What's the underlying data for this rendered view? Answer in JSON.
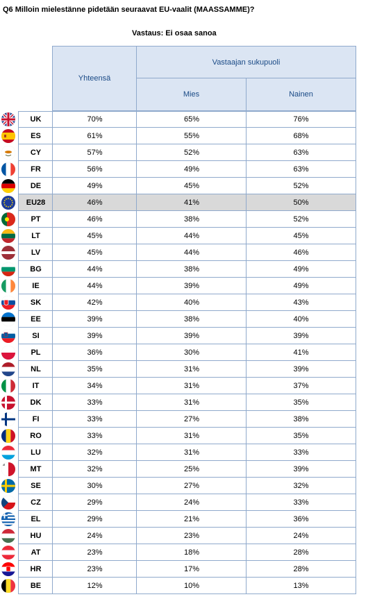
{
  "title": "Q6 Milloin mielestänne pidetään seuraavat EU-vaalit (MAASSAMME)?",
  "subtitle": "Vastaus: Ei osaa sanoa",
  "headers": {
    "total": "Yhteensä",
    "gender": "Vastaajan sukupuoli",
    "male": "Mies",
    "female": "Nainen"
  },
  "rows": [
    {
      "code": "UK",
      "total": "70%",
      "male": "65%",
      "female": "76%",
      "flag": "uk-flag-icon"
    },
    {
      "code": "ES",
      "total": "61%",
      "male": "55%",
      "female": "68%",
      "flag": "es-flag-icon"
    },
    {
      "code": "CY",
      "total": "57%",
      "male": "52%",
      "female": "63%",
      "flag": "cy-flag-icon"
    },
    {
      "code": "FR",
      "total": "56%",
      "male": "49%",
      "female": "63%",
      "flag": "fr-flag-icon"
    },
    {
      "code": "DE",
      "total": "49%",
      "male": "45%",
      "female": "52%",
      "flag": "de-flag-icon"
    },
    {
      "code": "EU28",
      "total": "46%",
      "male": "41%",
      "female": "50%",
      "flag": "eu-flag-icon",
      "highlight": true
    },
    {
      "code": "PT",
      "total": "46%",
      "male": "38%",
      "female": "52%",
      "flag": "pt-flag-icon"
    },
    {
      "code": "LT",
      "total": "45%",
      "male": "44%",
      "female": "45%",
      "flag": "lt-flag-icon"
    },
    {
      "code": "LV",
      "total": "45%",
      "male": "44%",
      "female": "46%",
      "flag": "lv-flag-icon"
    },
    {
      "code": "BG",
      "total": "44%",
      "male": "38%",
      "female": "49%",
      "flag": "bg-flag-icon"
    },
    {
      "code": "IE",
      "total": "44%",
      "male": "39%",
      "female": "49%",
      "flag": "ie-flag-icon"
    },
    {
      "code": "SK",
      "total": "42%",
      "male": "40%",
      "female": "43%",
      "flag": "sk-flag-icon"
    },
    {
      "code": "EE",
      "total": "39%",
      "male": "38%",
      "female": "40%",
      "flag": "ee-flag-icon"
    },
    {
      "code": "SI",
      "total": "39%",
      "male": "39%",
      "female": "39%",
      "flag": "si-flag-icon"
    },
    {
      "code": "PL",
      "total": "36%",
      "male": "30%",
      "female": "41%",
      "flag": "pl-flag-icon"
    },
    {
      "code": "NL",
      "total": "35%",
      "male": "31%",
      "female": "39%",
      "flag": "nl-flag-icon"
    },
    {
      "code": "IT",
      "total": "34%",
      "male": "31%",
      "female": "37%",
      "flag": "it-flag-icon"
    },
    {
      "code": "DK",
      "total": "33%",
      "male": "31%",
      "female": "35%",
      "flag": "dk-flag-icon"
    },
    {
      "code": "FI",
      "total": "33%",
      "male": "27%",
      "female": "38%",
      "flag": "fi-flag-icon"
    },
    {
      "code": "RO",
      "total": "33%",
      "male": "31%",
      "female": "35%",
      "flag": "ro-flag-icon"
    },
    {
      "code": "LU",
      "total": "32%",
      "male": "31%",
      "female": "33%",
      "flag": "lu-flag-icon"
    },
    {
      "code": "MT",
      "total": "32%",
      "male": "25%",
      "female": "39%",
      "flag": "mt-flag-icon"
    },
    {
      "code": "SE",
      "total": "30%",
      "male": "27%",
      "female": "32%",
      "flag": "se-flag-icon"
    },
    {
      "code": "CZ",
      "total": "29%",
      "male": "24%",
      "female": "33%",
      "flag": "cz-flag-icon"
    },
    {
      "code": "EL",
      "total": "29%",
      "male": "21%",
      "female": "36%",
      "flag": "el-flag-icon"
    },
    {
      "code": "HU",
      "total": "24%",
      "male": "23%",
      "female": "24%",
      "flag": "hu-flag-icon"
    },
    {
      "code": "AT",
      "total": "23%",
      "male": "18%",
      "female": "28%",
      "flag": "at-flag-icon"
    },
    {
      "code": "HR",
      "total": "23%",
      "male": "17%",
      "female": "28%",
      "flag": "hr-flag-icon"
    },
    {
      "code": "BE",
      "total": "12%",
      "male": "10%",
      "female": "13%",
      "flag": "be-flag-icon"
    }
  ],
  "colors": {
    "header_bg": "#dbe5f3",
    "header_text": "#1a4a86",
    "grid": "#8fa9cc",
    "highlight_row": "#d9d9d9"
  }
}
